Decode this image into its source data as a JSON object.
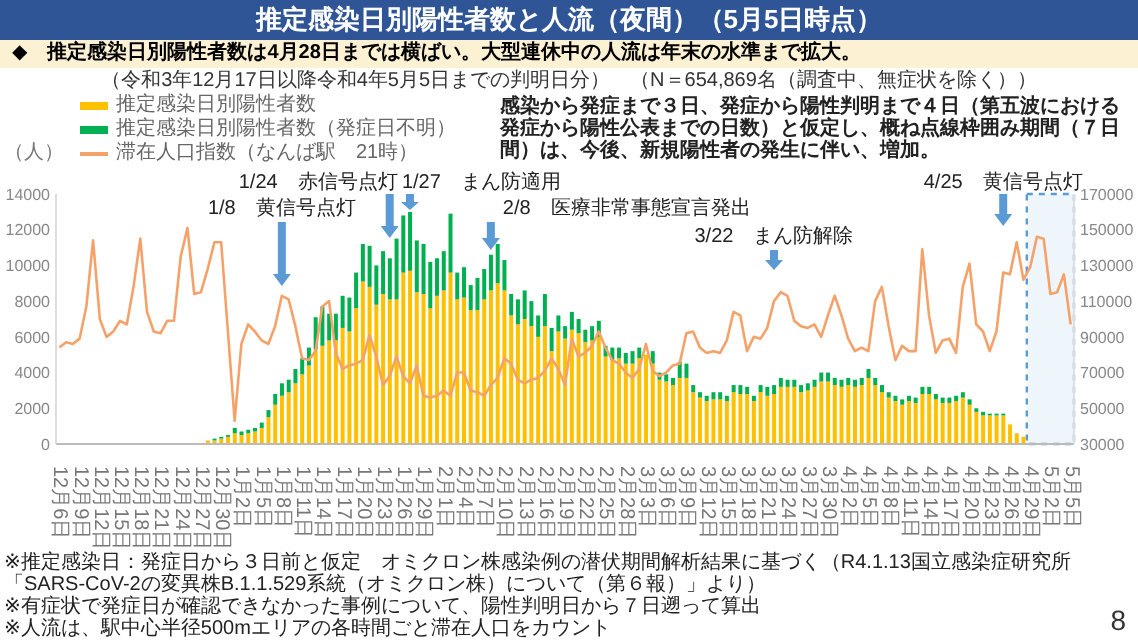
{
  "chart_data": {
    "type": "bar",
    "stacked": true,
    "title": "推定感染日別陽性者数と人流（夜間）（5月5日時点）",
    "subtitle": "◆　推定感染日別陽性者数は4月28日までは横ばい。大型連休中の人流は年末の水準まで拡大。",
    "ylabel": "（人）",
    "legend": "top left",
    "categories": [
      "12月6日",
      null,
      null,
      "12月9日",
      null,
      null,
      "12月12日",
      null,
      null,
      "12月15日",
      null,
      null,
      "12月18日",
      null,
      null,
      "12月21日",
      null,
      null,
      "12月24日",
      null,
      null,
      "12月27日",
      null,
      null,
      "12月30日",
      null,
      null,
      "1月2日",
      null,
      null,
      "1月5日",
      null,
      null,
      "1月8日",
      null,
      null,
      "1月11日",
      null,
      null,
      "1月14日",
      null,
      null,
      "1月17日",
      null,
      null,
      "1月20日",
      null,
      null,
      "1月23日",
      null,
      null,
      "1月26日",
      null,
      null,
      "1月29日",
      null,
      null,
      "2月1日",
      null,
      null,
      "2月4日",
      null,
      null,
      "2月7日",
      null,
      null,
      "2月10日",
      null,
      null,
      "2月13日",
      null,
      null,
      "2月16日",
      null,
      null,
      "2月19日",
      null,
      null,
      "2月22日",
      null,
      null,
      "2月25日",
      null,
      null,
      "2月28日",
      null,
      null,
      "3月3日",
      null,
      null,
      "3月6日",
      null,
      null,
      "3月9日",
      null,
      null,
      "3月12日",
      null,
      null,
      "3月15日",
      null,
      null,
      "3月18日",
      null,
      null,
      "3月21日",
      null,
      null,
      "3月24日",
      null,
      null,
      "3月27日",
      null,
      null,
      "3月30日",
      null,
      null,
      "4月2日",
      null,
      null,
      "4月5日",
      null,
      null,
      "4月8日",
      null,
      null,
      "4月11日",
      null,
      null,
      "4月14日",
      null,
      null,
      "4月17日",
      null,
      null,
      "4月20日",
      null,
      null,
      "4月23日",
      null,
      null,
      "4月26日",
      null,
      null,
      "4月29日",
      null,
      null,
      "5月2日",
      null,
      null,
      "5月5日"
    ],
    "series": [
      {
        "name": "推定感染日別陽性者数",
        "color": "#ffc000",
        "values": [
          0,
          0,
          0,
          0,
          0,
          0,
          0,
          0,
          0,
          0,
          0,
          0,
          0,
          0,
          0,
          0,
          0,
          0,
          0,
          0,
          null,
          null,
          200,
          200,
          300,
          400,
          600,
          500,
          600,
          700,
          900,
          1500,
          2200,
          2700,
          2900,
          3400,
          3900,
          4400,
          5300,
          5500,
          5800,
          5800,
          6500,
          6300,
          7600,
          9100,
          8800,
          7800,
          8400,
          8100,
          8100,
          9600,
          9700,
          8500,
          8400,
          7600,
          8300,
          8600,
          9600,
          8100,
          8200,
          7500,
          7500,
          8100,
          8600,
          9000,
          8600,
          7200,
          6700,
          7000,
          6600,
          6000,
          6600,
          5200,
          6300,
          5900,
          6400,
          6200,
          5700,
          5800,
          6000,
          4900,
          4700,
          4800,
          4500,
          4500,
          4800,
          5000,
          4500,
          3600,
          3500,
          3300,
          3700,
          3700,
          2900,
          2600,
          2400,
          2500,
          2500,
          2400,
          2900,
          2800,
          2800,
          2400,
          2900,
          2700,
          2800,
          3200,
          3200,
          3200,
          2900,
          3000,
          3200,
          3500,
          3500,
          3300,
          3200,
          3300,
          3200,
          3300,
          3700,
          3300,
          2900,
          2600,
          2400,
          2200,
          2400,
          2300,
          2800,
          2800,
          2500,
          2300,
          2300,
          2400,
          2600,
          2200,
          1800,
          1600,
          1600,
          1600,
          1600,
          1100,
          600,
          400,
          null,
          null,
          null,
          null,
          null,
          null,
          null
        ]
      },
      {
        "name": "推定感染日別陽性者数（発症日不明）",
        "color": "#00b050",
        "values": [
          0,
          0,
          0,
          0,
          0,
          0,
          0,
          0,
          0,
          0,
          0,
          0,
          0,
          0,
          0,
          0,
          0,
          0,
          0,
          0,
          0,
          0,
          0,
          100,
          100,
          100,
          300,
          200,
          200,
          200,
          300,
          400,
          600,
          700,
          700,
          800,
          900,
          1000,
          1800,
          2200,
          1500,
          1500,
          1800,
          1900,
          2000,
          2100,
          2300,
          2200,
          2400,
          2300,
          3400,
          3200,
          3300,
          2900,
          2800,
          2600,
          2100,
          2200,
          3300,
          1500,
          1700,
          1400,
          1800,
          1700,
          2000,
          2200,
          1700,
          1200,
          1400,
          1600,
          1400,
          1200,
          1800,
          1300,
          900,
          700,
          1000,
          800,
          700,
          800,
          900,
          600,
          700,
          600,
          600,
          700,
          600,
          null,
          700,
          400,
          400,
          400,
          900,
          800,
          400,
          300,
          300,
          400,
          400,
          300,
          400,
          500,
          400,
          300,
          400,
          500,
          500,
          500,
          400,
          400,
          400,
          400,
          400,
          500,
          500,
          400,
          400,
          400,
          400,
          400,
          500,
          400,
          400,
          300,
          300,
          300,
          300,
          300,
          400,
          400,
          300,
          300,
          300,
          300,
          300,
          300,
          200,
          200,
          100,
          100,
          100,
          0,
          0,
          0,
          null,
          null,
          null,
          null,
          null,
          null,
          null
        ]
      },
      {
        "name": "滞在人口指数（なんば駅　21時）",
        "type": "line",
        "axis": "y2",
        "color": "#f5a26a",
        "values": [
          84000,
          87000,
          86000,
          89000,
          107000,
          144000,
          100000,
          90000,
          93000,
          99000,
          97000,
          118000,
          145000,
          104000,
          93000,
          92000,
          99000,
          99000,
          135000,
          151000,
          114000,
          115000,
          128000,
          143000,
          143000,
          93000,
          43000,
          86000,
          97000,
          93000,
          88000,
          86000,
          96000,
          113000,
          111000,
          96000,
          78000,
          77000,
          82000,
          107000,
          110000,
          81000,
          72000,
          74000,
          75000,
          77000,
          91000,
          79000,
          63000,
          68000,
          79000,
          68000,
          64000,
          74000,
          57000,
          56000,
          57000,
          60000,
          57000,
          70000,
          70000,
          60000,
          59000,
          57000,
          63000,
          67000,
          78000,
          75000,
          66000,
          64000,
          66000,
          67000,
          71000,
          78000,
          72000,
          63000,
          89000,
          79000,
          81000,
          85000,
          93000,
          84000,
          77000,
          75000,
          70000,
          67000,
          72000,
          86000,
          71000,
          68000,
          70000,
          74000,
          75000,
          92000,
          93000,
          84000,
          81000,
          82000,
          81000,
          88000,
          104000,
          102000,
          82000,
          90000,
          89000,
          95000,
          110000,
          115000,
          113000,
          99000,
          96000,
          95000,
          97000,
          90000,
          102000,
          113000,
          102000,
          89000,
          82000,
          84000,
          82000,
          110000,
          118000,
          96000,
          77000,
          85000,
          82000,
          82000,
          139000,
          102000,
          81000,
          88000,
          89000,
          81000,
          118000,
          131000,
          97000,
          93000,
          82000,
          93000,
          126000,
          125000,
          143000,
          122000,
          129000,
          146000,
          145000,
          114000,
          115000,
          125000,
          97000
        ]
      }
    ],
    "ylim": [
      0,
      14000
    ],
    "yticks": [
      0,
      2000,
      4000,
      6000,
      8000,
      10000,
      12000,
      14000
    ],
    "y2lim": [
      30000,
      170000
    ],
    "y2ticks": [
      30000,
      50000,
      70000,
      90000,
      110000,
      130000,
      150000,
      170000
    ],
    "bands": [
      {
        "axis": "x",
        "from": "4月29日",
        "to": "5月5日",
        "color": "#5b9bd5"
      }
    ],
    "annotations": [
      "1/8　黄信号点灯",
      "1/24　赤信号点灯",
      "1/27　まん防適用",
      "2/8　医療非常事態宣言発出",
      "3/22　まん防解除",
      "4/25　黄信号点灯",
      "（令和3年12月17日以降令和4年5月5日までの判明日分）　（N＝654,869名（調査中、無症状を除く））",
      "感染から発症まで３日、発症から陽性判明まで４日（第五波における発症から陽性公表までの日数）と仮定し、概ね点線枠囲み期間（７日間）は、今後、新規陽性者の発生に伴い、増加。",
      "※推定感染日：発症日から３日前と仮定　オミクロン株感染例の潜伏期間解析結果に基づく（R4.1.13国立感染症研究所「SARS-CoV-2の変異株B.1.1.529系統（オミクロン株）について（第６報）」より）",
      "※有症状で発症日が確認できなかった事例について、陽性判明日から７日遡って算出",
      "※人流は、駅中心半径500mエリアの各時間ごと滞在人口をカウント",
      "8"
    ]
  }
}
